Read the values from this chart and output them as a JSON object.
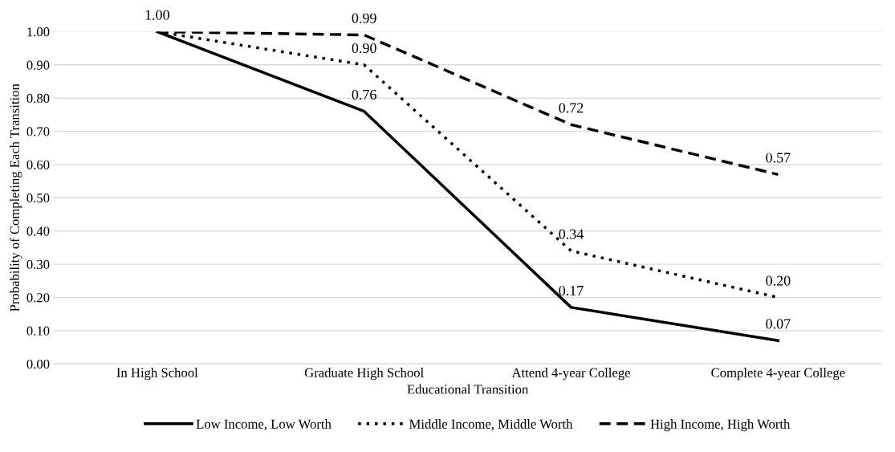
{
  "chart_data": {
    "type": "line",
    "xlabel": "Educational Transition",
    "ylabel": "Probability of Completing Each Transition",
    "categories": [
      "In High School",
      "Graduate High School",
      "Attend 4-year College",
      "Complete 4-year College"
    ],
    "series": [
      {
        "name": "Low Income, Low Worth",
        "color": "#000000",
        "line_style": "solid",
        "values": [
          1.0,
          0.76,
          0.17,
          0.07
        ],
        "value_labels": [
          "1.00",
          "0.76",
          "0.17",
          "0.07"
        ]
      },
      {
        "name": "Middle Income, Middle Worth",
        "color": "#000000",
        "line_style": "dotted",
        "values": [
          1.0,
          0.9,
          0.34,
          0.2
        ],
        "value_labels": [
          null,
          "0.90",
          "0.34",
          "0.20"
        ]
      },
      {
        "name": "High Income, High Worth",
        "color": "#000000",
        "line_style": "dashed",
        "values": [
          1.0,
          0.99,
          0.72,
          0.57
        ],
        "value_labels": [
          null,
          "0.99",
          "0.72",
          "0.57"
        ]
      }
    ],
    "ylim": [
      0,
      1.0
    ],
    "yticks": [
      {
        "value": 0,
        "label": "0.00"
      },
      {
        "value": 0.1,
        "label": "0.10"
      },
      {
        "value": 0.2,
        "label": "0.20"
      },
      {
        "value": 0.3,
        "label": "0.30"
      },
      {
        "value": 0.4,
        "label": "0.40"
      },
      {
        "value": 0.5,
        "label": "0.50"
      },
      {
        "value": 0.6,
        "label": "0.60"
      },
      {
        "value": 0.7,
        "label": "0.70"
      },
      {
        "value": 0.8,
        "label": "0.80"
      },
      {
        "value": 0.9,
        "label": "0.90"
      },
      {
        "value": 1.0,
        "label": "1.00"
      }
    ],
    "grid": "y",
    "legend": "bottom",
    "marker": "none"
  }
}
